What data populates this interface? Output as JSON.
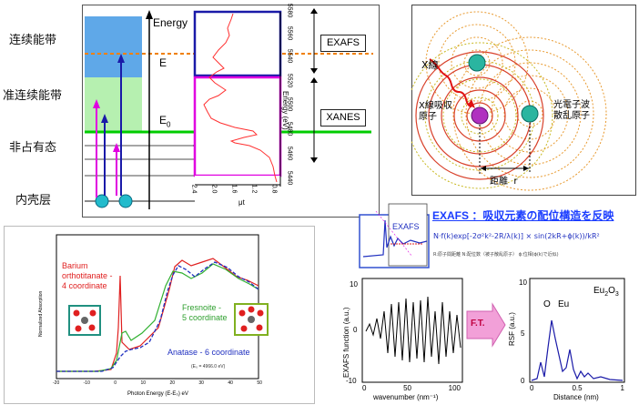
{
  "levels": {
    "conduction": "连续能带",
    "quasi": "准连续能带",
    "unoccupied": "非占有态",
    "core": "内壳层"
  },
  "energy_panel": {
    "energy_label": "Energy",
    "e_label": "E",
    "e0_label": "E",
    "e0_sub": "0",
    "exafs_box": "EXAFS",
    "xanes_box": "XANES",
    "energy_axis_label": "Energy (eV)",
    "energy_ticks": [
      "5580",
      "5560",
      "5540",
      "5520",
      "5500",
      "5480",
      "5460",
      "5440"
    ],
    "mu_ticks": [
      "2.4",
      "2.0",
      "1.6",
      "1.2",
      "0.8"
    ],
    "mu_label": "μt"
  },
  "atoms_panel": {
    "xray": "X線",
    "absorbing": "X線吸収\n原子",
    "scattering": "光電子波\n散乱原子",
    "distance": "距離  r"
  },
  "bottom_left": {
    "barium": "Barium\northotitanate -\n4 coordinate",
    "fresnoite": "Fresnoite -\n5 coordinate",
    "anatase": "Anatase - 6 coordinate",
    "xlabel": "Photon Energy (E-E₀) eV",
    "ylabel": "Normalized Absorption",
    "e0note": "(E₀ = 4966.0 eV)",
    "xticks": [
      "-20",
      "-10",
      "0",
      "10",
      "20",
      "30",
      "40",
      "50"
    ]
  },
  "exafs_panel": {
    "title": "EXAFS ：吸収元素の配位構造を反映",
    "inset_label": "EXAFS",
    "formula": "N·f(k)exp[-2σ²k²-2R/λ(k)] × sin(2kR+ϕ(k))/kR²",
    "note": "R:原子間距離   N:配位数（被子散乱原子）  ϕ:位相(ϕ(k)で近似)",
    "ylabel": "EXAFS function (a.u.)",
    "xlabel": "wavenumber (nm⁻¹)",
    "yticks": [
      "10",
      "0",
      "-10"
    ],
    "xticks": [
      "0",
      "50",
      "100"
    ],
    "ft": "F.T.",
    "rsf_ylabel": "RSF (a.u.)",
    "rsf_xlabel": "Distance (nm)",
    "rsf_yticks": [
      "10",
      "5",
      "0"
    ],
    "rsf_xticks": [
      "0",
      "0.5",
      "1"
    ],
    "peak_o": "O",
    "peak_eu": "Eu",
    "compound": "Eu",
    "compound_sub1": "2",
    "compound_mid": "O",
    "compound_sub2": "3"
  },
  "colors": {
    "blue_band": "#5fa8e8",
    "green_band": "#b6f0b0",
    "green_line": "#00cc00",
    "orange_dash": "#f08000",
    "magenta": "#e000e0",
    "dark_blue": "#1a1aa8",
    "teal_atom": "#2ab5a0",
    "purple_atom": "#b030c0",
    "pink_arrow": "#ff66cc"
  }
}
